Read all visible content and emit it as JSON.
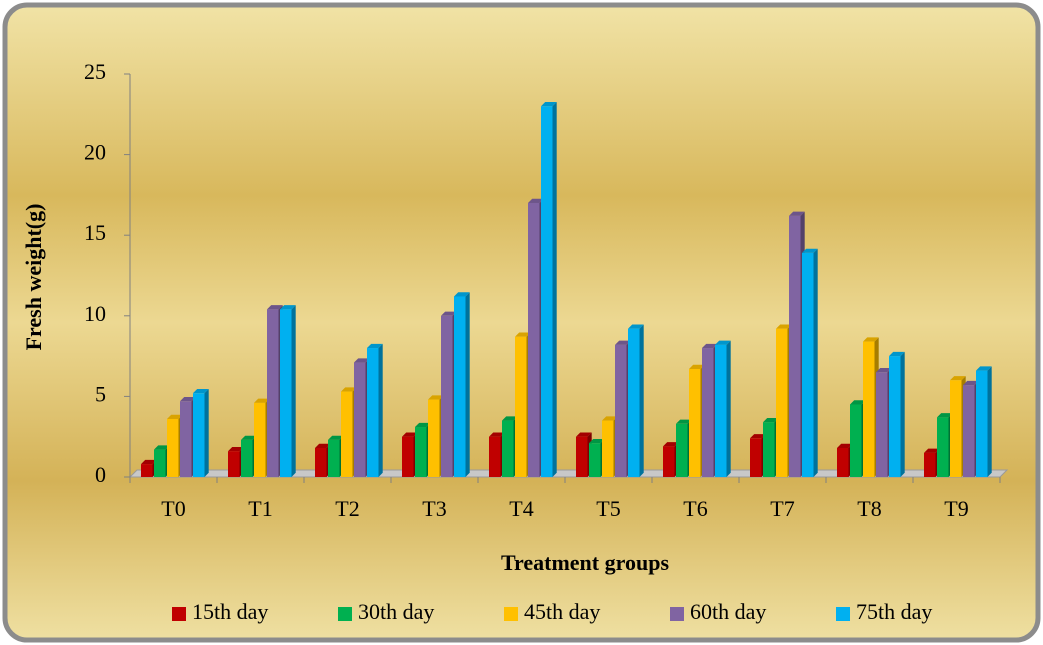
{
  "chart_data": {
    "type": "bar",
    "xlabel": "Treatment groups",
    "ylabel": "Fresh weight(g)",
    "categories": [
      "T0",
      "T1",
      "T2",
      "T3",
      "T4",
      "T5",
      "T6",
      "T7",
      "T8",
      "T9"
    ],
    "series": [
      {
        "name": "15th day",
        "color": "#c00000",
        "values": [
          0.8,
          1.6,
          1.8,
          2.5,
          2.5,
          2.5,
          1.9,
          2.4,
          1.8,
          1.5
        ]
      },
      {
        "name": "30th day",
        "color": "#00b050",
        "values": [
          1.7,
          2.3,
          2.3,
          3.1,
          3.5,
          2.1,
          3.3,
          3.4,
          4.5,
          3.7
        ]
      },
      {
        "name": "45th day",
        "color": "#ffc000",
        "values": [
          3.6,
          4.6,
          5.3,
          4.8,
          8.7,
          3.5,
          6.7,
          9.2,
          8.4,
          6.0
        ]
      },
      {
        "name": "60th day",
        "color": "#8064a2",
        "values": [
          4.7,
          10.4,
          7.1,
          10.0,
          17.0,
          8.2,
          8.0,
          16.2,
          6.5,
          5.7
        ]
      },
      {
        "name": "75th day",
        "color": "#00b0f0",
        "values": [
          5.2,
          10.4,
          8.0,
          11.2,
          23.0,
          9.2,
          8.2,
          13.9,
          7.5,
          6.6
        ]
      }
    ],
    "ylim": [
      0,
      25
    ],
    "yticks": [
      0,
      5,
      10,
      15,
      20,
      25
    ],
    "legend": "bottom"
  }
}
